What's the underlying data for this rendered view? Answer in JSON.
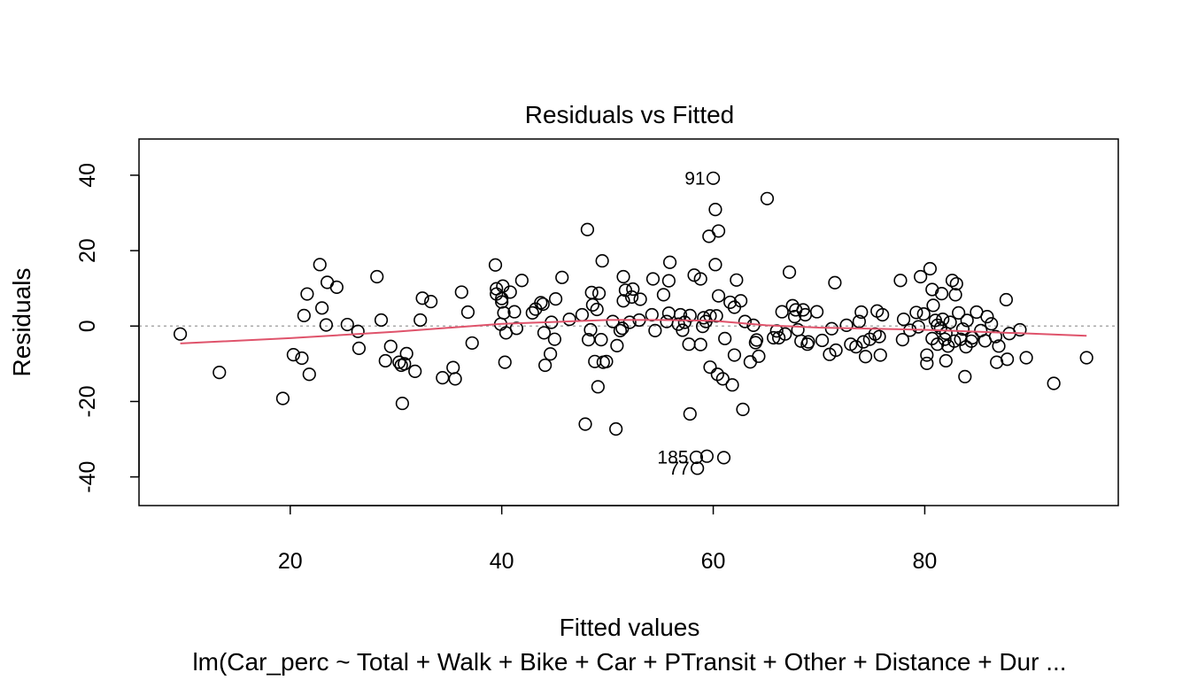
{
  "chart_data": {
    "type": "scatter",
    "title": "Residuals vs Fitted",
    "xlabel": "Fitted values",
    "ylabel": "Residuals",
    "subtitle": "lm(Car_perc ~ Total + Walk + Bike + Car + PTransit + Other + Distance + Dur ...",
    "xlim": [
      5.7,
      98.3
    ],
    "ylim": [
      -47.6,
      49.6
    ],
    "x_ticks": [
      20,
      40,
      60,
      80
    ],
    "x_tick_labels": [
      "20",
      "40",
      "60",
      "80"
    ],
    "y_ticks": [
      -40,
      -20,
      0,
      20,
      40
    ],
    "y_tick_labels": [
      "-40",
      "-20",
      "0",
      "20",
      "40"
    ],
    "reference_line": 0,
    "colors": {
      "points": "#000000",
      "smooth": "#DF536B",
      "reference": "#aaaaaa"
    },
    "labeled_points": [
      {
        "label": "91",
        "x": 60.0,
        "y": 39.2
      },
      {
        "label": "185",
        "x": 58.4,
        "y": -34.8
      },
      {
        "label": "77",
        "x": 58.5,
        "y": -37.7
      }
    ],
    "points": [
      [
        9.6,
        -2.1
      ],
      [
        13.3,
        -12.3
      ],
      [
        19.3,
        -19.2
      ],
      [
        20.3,
        -7.6
      ],
      [
        21.1,
        -8.5
      ],
      [
        21.3,
        2.8
      ],
      [
        21.6,
        8.5
      ],
      [
        21.8,
        -12.8
      ],
      [
        22.8,
        16.3
      ],
      [
        23.0,
        4.8
      ],
      [
        23.4,
        0.3
      ],
      [
        23.5,
        11.6
      ],
      [
        24.4,
        10.3
      ],
      [
        25.4,
        0.4
      ],
      [
        26.4,
        -1.4
      ],
      [
        26.5,
        -5.9
      ],
      [
        28.2,
        13.1
      ],
      [
        28.6,
        1.6
      ],
      [
        29.0,
        -9.2
      ],
      [
        29.5,
        -5.4
      ],
      [
        30.3,
        -9.6
      ],
      [
        30.5,
        -10.4
      ],
      [
        30.6,
        -20.5
      ],
      [
        30.8,
        -10.0
      ],
      [
        31.0,
        -7.3
      ],
      [
        31.8,
        -12.0
      ],
      [
        32.3,
        1.6
      ],
      [
        32.5,
        7.4
      ],
      [
        33.3,
        6.5
      ],
      [
        34.4,
        -13.7
      ],
      [
        35.4,
        -11.0
      ],
      [
        35.6,
        -14.0
      ],
      [
        36.2,
        9.0
      ],
      [
        36.8,
        3.7
      ],
      [
        37.2,
        -4.5
      ],
      [
        39.4,
        16.2
      ],
      [
        39.5,
        8.5
      ],
      [
        39.5,
        9.9
      ],
      [
        39.9,
        0.5
      ],
      [
        40.0,
        7.3
      ],
      [
        40.0,
        6.4
      ],
      [
        40.3,
        -9.6
      ],
      [
        40.1,
        10.6
      ],
      [
        40.2,
        3.5
      ],
      [
        40.4,
        -1.8
      ],
      [
        40.8,
        9.0
      ],
      [
        41.2,
        3.8
      ],
      [
        41.4,
        -0.6
      ],
      [
        41.9,
        12.1
      ],
      [
        42.9,
        3.5
      ],
      [
        43.2,
        4.5
      ],
      [
        43.7,
        6.2
      ],
      [
        43.9,
        5.8
      ],
      [
        44.0,
        -1.8
      ],
      [
        44.1,
        -10.4
      ],
      [
        44.6,
        -7.4
      ],
      [
        44.7,
        1.0
      ],
      [
        45.0,
        -3.5
      ],
      [
        45.1,
        7.2
      ],
      [
        45.7,
        12.9
      ],
      [
        46.4,
        1.8
      ],
      [
        47.6,
        3.0
      ],
      [
        47.9,
        -26.0
      ],
      [
        48.1,
        25.6
      ],
      [
        48.2,
        -3.6
      ],
      [
        48.4,
        -1.0
      ],
      [
        48.5,
        8.9
      ],
      [
        48.6,
        5.6
      ],
      [
        48.8,
        -9.4
      ],
      [
        49.0,
        4.4
      ],
      [
        49.1,
        -16.1
      ],
      [
        49.2,
        8.7
      ],
      [
        49.4,
        -3.6
      ],
      [
        49.5,
        17.3
      ],
      [
        49.6,
        -9.6
      ],
      [
        49.9,
        -9.4
      ],
      [
        50.5,
        1.2
      ],
      [
        50.8,
        -27.3
      ],
      [
        50.9,
        -5.2
      ],
      [
        51.2,
        -1.2
      ],
      [
        51.4,
        -0.6
      ],
      [
        51.5,
        13.1
      ],
      [
        51.5,
        6.7
      ],
      [
        51.7,
        9.5
      ],
      [
        52.1,
        1.0
      ],
      [
        52.4,
        9.8
      ],
      [
        52.3,
        7.7
      ],
      [
        53.0,
        1.6
      ],
      [
        53.1,
        7.1
      ],
      [
        54.2,
        3.0
      ],
      [
        54.3,
        12.5
      ],
      [
        54.5,
        -1.2
      ],
      [
        55.3,
        8.3
      ],
      [
        55.6,
        1.2
      ],
      [
        55.8,
        3.4
      ],
      [
        55.8,
        12.0
      ],
      [
        55.9,
        16.9
      ],
      [
        56.7,
        0.5
      ],
      [
        56.9,
        3.0
      ],
      [
        57.1,
        -1.1
      ],
      [
        57.3,
        1.0
      ],
      [
        57.7,
        -4.8
      ],
      [
        57.8,
        2.8
      ],
      [
        57.8,
        -23.3
      ],
      [
        58.2,
        13.5
      ],
      [
        58.4,
        -34.8
      ],
      [
        58.5,
        -37.7
      ],
      [
        58.8,
        -4.9
      ],
      [
        58.8,
        12.5
      ],
      [
        59.0,
        -0.1
      ],
      [
        59.1,
        2.2
      ],
      [
        59.3,
        1.2
      ],
      [
        59.4,
        -34.5
      ],
      [
        59.6,
        23.8
      ],
      [
        59.7,
        -10.9
      ],
      [
        59.7,
        2.7
      ],
      [
        60.0,
        39.2
      ],
      [
        60.2,
        30.9
      ],
      [
        60.2,
        16.3
      ],
      [
        60.3,
        2.7
      ],
      [
        60.4,
        -12.8
      ],
      [
        60.5,
        25.2
      ],
      [
        60.5,
        8.0
      ],
      [
        60.9,
        -14.0
      ],
      [
        61.1,
        -3.3
      ],
      [
        61.0,
        -34.9
      ],
      [
        61.6,
        6.3
      ],
      [
        61.8,
        -15.6
      ],
      [
        62.0,
        5.0
      ],
      [
        62.0,
        -7.7
      ],
      [
        62.2,
        12.2
      ],
      [
        62.6,
        6.7
      ],
      [
        62.8,
        -22.1
      ],
      [
        63.0,
        1.2
      ],
      [
        63.5,
        -9.5
      ],
      [
        63.8,
        0.2
      ],
      [
        64.0,
        -4.4
      ],
      [
        64.1,
        -3.7
      ],
      [
        64.3,
        -8.0
      ],
      [
        65.1,
        33.8
      ],
      [
        65.7,
        -3.1
      ],
      [
        66.0,
        -1.3
      ],
      [
        66.2,
        -3.1
      ],
      [
        66.5,
        3.8
      ],
      [
        66.8,
        -2.1
      ],
      [
        67.2,
        14.3
      ],
      [
        67.5,
        5.4
      ],
      [
        67.7,
        2.5
      ],
      [
        67.8,
        4.3
      ],
      [
        68.0,
        -1.0
      ],
      [
        68.3,
        -4.0
      ],
      [
        68.5,
        4.3
      ],
      [
        68.7,
        3.0
      ],
      [
        68.9,
        -4.8
      ],
      [
        69.0,
        -4.2
      ],
      [
        69.8,
        3.8
      ],
      [
        70.3,
        -3.8
      ],
      [
        71.0,
        -7.5
      ],
      [
        71.2,
        -0.7
      ],
      [
        71.5,
        11.5
      ],
      [
        71.6,
        -6.4
      ],
      [
        72.6,
        0.2
      ],
      [
        73.0,
        -4.8
      ],
      [
        73.5,
        -5.5
      ],
      [
        73.8,
        1.2
      ],
      [
        74.0,
        3.7
      ],
      [
        74.2,
        -4.2
      ],
      [
        74.4,
        -8.1
      ],
      [
        74.8,
        -3.5
      ],
      [
        75.3,
        -2.1
      ],
      [
        75.5,
        4.0
      ],
      [
        75.7,
        -2.8
      ],
      [
        75.8,
        -7.7
      ],
      [
        76.0,
        3.0
      ],
      [
        77.7,
        12.1
      ],
      [
        77.9,
        -3.6
      ],
      [
        78.0,
        1.8
      ],
      [
        78.6,
        -1.1
      ],
      [
        79.2,
        3.6
      ],
      [
        79.4,
        -0.2
      ],
      [
        79.6,
        13.1
      ],
      [
        79.9,
        3.2
      ],
      [
        80.2,
        -7.7
      ],
      [
        80.2,
        -9.9
      ],
      [
        80.5,
        15.2
      ],
      [
        80.7,
        -3.3
      ],
      [
        80.7,
        9.7
      ],
      [
        80.8,
        5.5
      ],
      [
        81.0,
        1.5
      ],
      [
        81.2,
        -4.8
      ],
      [
        81.2,
        0.2
      ],
      [
        81.5,
        -0.5
      ],
      [
        81.6,
        8.6
      ],
      [
        81.7,
        1.8
      ],
      [
        81.9,
        -3.5
      ],
      [
        82.0,
        -9.2
      ],
      [
        82.0,
        -1.9
      ],
      [
        82.2,
        -5.3
      ],
      [
        82.4,
        1.0
      ],
      [
        82.6,
        12.1
      ],
      [
        82.8,
        -4.0
      ],
      [
        82.9,
        8.3
      ],
      [
        83.0,
        11.2
      ],
      [
        83.2,
        3.5
      ],
      [
        83.4,
        -3.5
      ],
      [
        83.6,
        -0.8
      ],
      [
        83.8,
        -13.4
      ],
      [
        83.9,
        -5.5
      ],
      [
        84.0,
        1.5
      ],
      [
        84.4,
        -4.0
      ],
      [
        84.5,
        -3.1
      ],
      [
        84.9,
        3.7
      ],
      [
        85.3,
        -1.2
      ],
      [
        85.7,
        -3.9
      ],
      [
        85.9,
        2.5
      ],
      [
        86.3,
        0.6
      ],
      [
        86.7,
        -2.8
      ],
      [
        86.8,
        -9.6
      ],
      [
        87.0,
        -5.3
      ],
      [
        87.7,
        7.0
      ],
      [
        87.8,
        -8.8
      ],
      [
        88.0,
        -2.0
      ],
      [
        89.0,
        -1.0
      ],
      [
        89.6,
        -8.4
      ],
      [
        92.2,
        -15.2
      ],
      [
        95.3,
        -8.4
      ]
    ],
    "smooth_line": [
      [
        9.6,
        -4.6
      ],
      [
        20,
        -3.2
      ],
      [
        30,
        -1.5
      ],
      [
        40,
        0.6
      ],
      [
        50,
        1.6
      ],
      [
        55,
        1.6
      ],
      [
        60,
        1.4
      ],
      [
        65,
        0.2
      ],
      [
        70,
        -0.4
      ],
      [
        75,
        -0.7
      ],
      [
        80,
        -1.0
      ],
      [
        85,
        -1.5
      ],
      [
        90,
        -2.0
      ],
      [
        95.3,
        -2.6
      ]
    ]
  }
}
